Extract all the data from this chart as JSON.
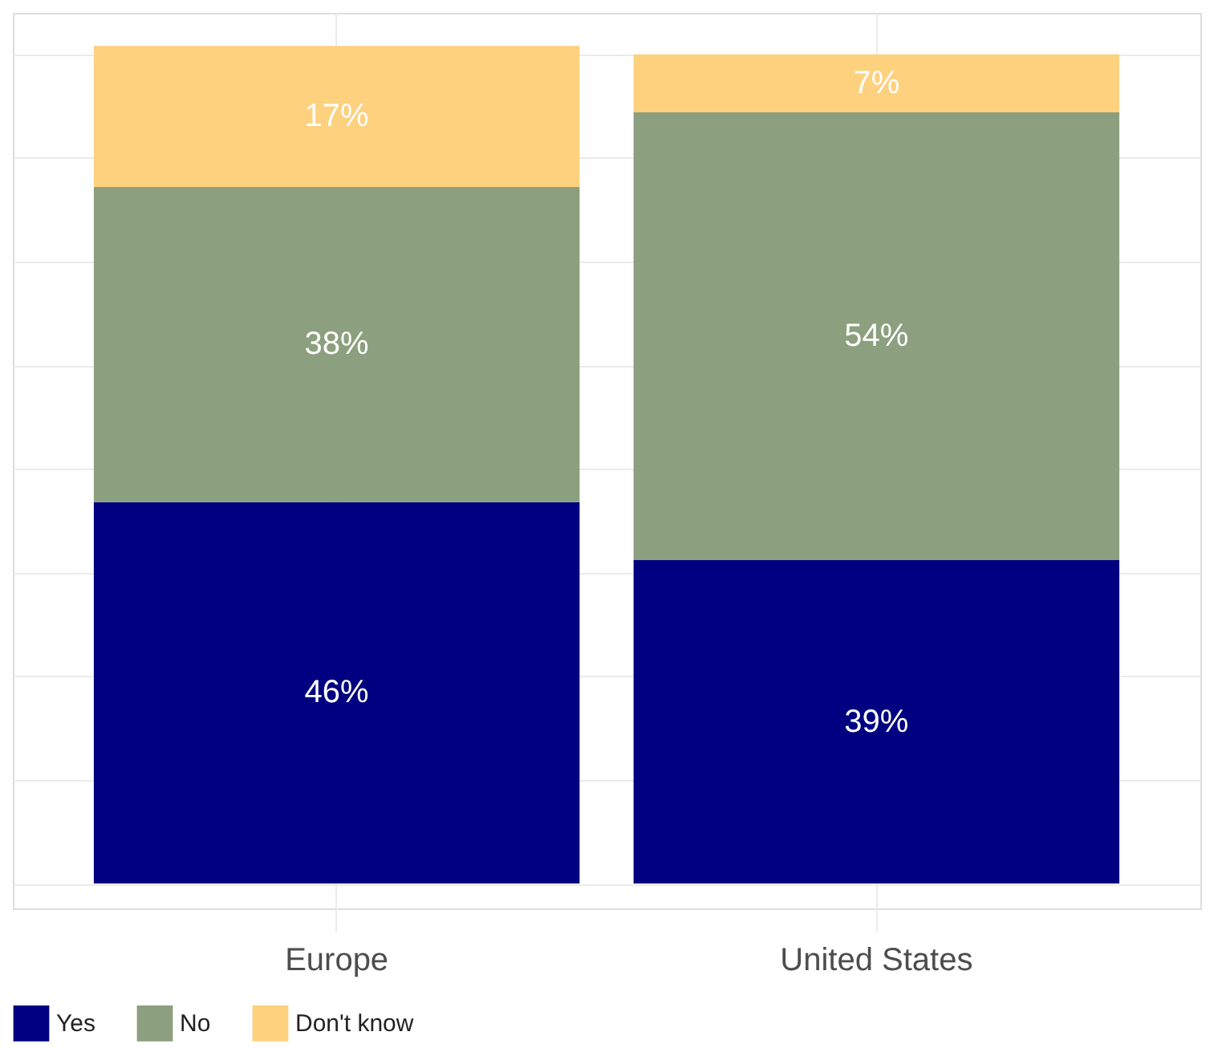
{
  "chart_data": {
    "type": "bar",
    "stacked": true,
    "categories": [
      "Europe",
      "United States"
    ],
    "series": [
      {
        "name": "Yes",
        "color": "#000080",
        "values": [
          46,
          39
        ],
        "value_labels": [
          "46%",
          "39%"
        ]
      },
      {
        "name": "No",
        "color": "#8c9f7e",
        "values": [
          38,
          54
        ],
        "value_labels": [
          "38%",
          "54%"
        ]
      },
      {
        "name": "Don't know",
        "color": "#fed17e",
        "values": [
          17,
          7
        ],
        "value_labels": [
          "17%",
          "7%"
        ]
      }
    ],
    "ylim": [
      -3,
      105
    ],
    "yticks": [
      {
        "value": 0,
        "label": null
      },
      {
        "value": 12.5,
        "label": null
      },
      {
        "value": 25,
        "label": null
      },
      {
        "value": 37.5,
        "label": null
      },
      {
        "value": 50,
        "label": null
      },
      {
        "value": 62.5,
        "label": null
      },
      {
        "value": 75,
        "label": null
      },
      {
        "value": 87.5,
        "label": null
      },
      {
        "value": 100,
        "label": null
      }
    ],
    "tick_labels": "x",
    "grid": true,
    "legend": "bottom"
  }
}
